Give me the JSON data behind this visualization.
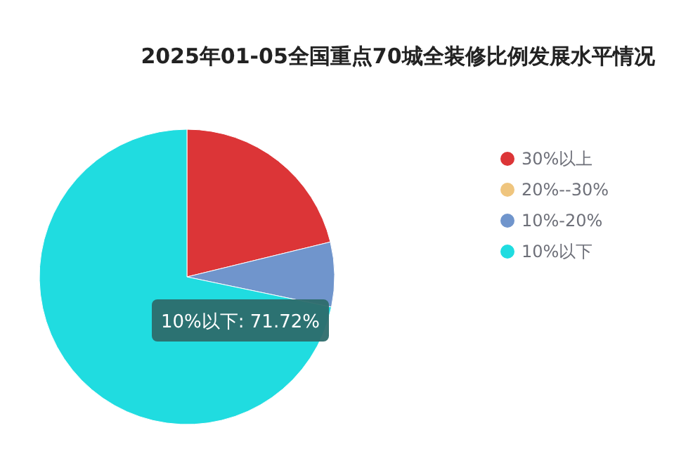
{
  "chart_data": {
    "type": "pie",
    "title": "2025年01-05全国重点70城全装修比例发展水平情况",
    "categories": [
      "30%以上",
      "20%--30%",
      "10%-20%",
      "10%以下"
    ],
    "values": [
      21.2,
      0,
      7.08,
      71.72
    ],
    "colors": [
      "#dc3537",
      "#efc57e",
      "#7095cc",
      "#20dce0"
    ],
    "legend": "right",
    "annotations": [
      "10%以下: 71.72%"
    ]
  }
}
